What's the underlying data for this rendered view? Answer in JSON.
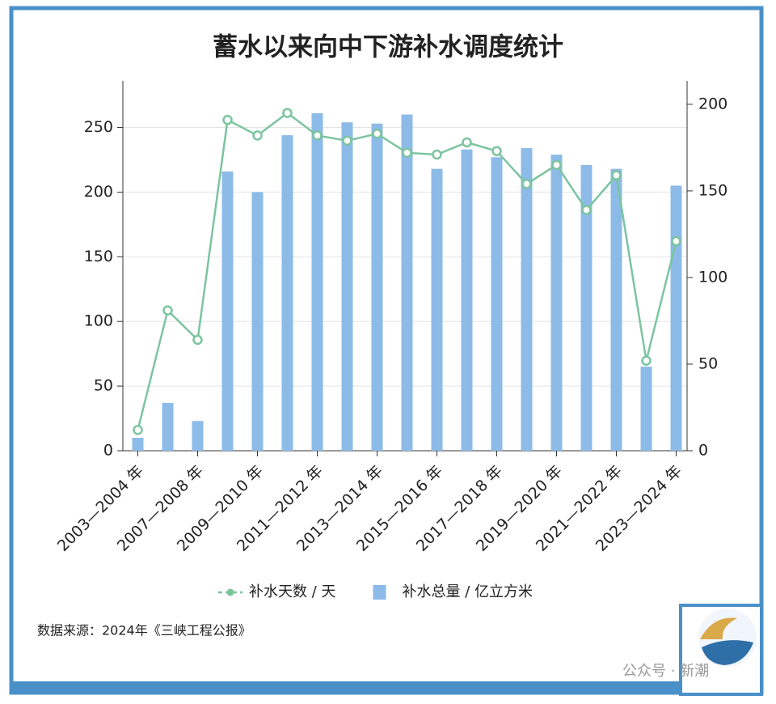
{
  "chart_data": {
    "type": "bar",
    "title": "蓄水以来向中下游补水调度统计",
    "categories": [
      "2003—2004 年",
      null,
      "2007—2008 年",
      null,
      "2009—2010 年",
      null,
      "2011—2012 年",
      null,
      "2013—2014 年",
      null,
      "2015—2016 年",
      null,
      "2017—2018 年",
      null,
      "2019—2020 年",
      null,
      "2021—2022 年",
      null,
      "2023—2024 年"
    ],
    "series": [
      {
        "name": "补水天数 / 天",
        "type": "line",
        "axis": "y2",
        "color": "#7cc4a0",
        "values": [
          12,
          81,
          64,
          191,
          182,
          195,
          182,
          179,
          183,
          172,
          171,
          178,
          173,
          154,
          165,
          139,
          159,
          52,
          121
        ]
      },
      {
        "name": "补水总量 / 亿立方米",
        "type": "bar",
        "color": "#8cbbe8",
        "values": [
          10,
          37,
          23,
          216,
          200,
          244,
          261,
          254,
          253,
          260,
          218,
          233,
          227,
          234,
          229,
          221,
          218,
          65,
          205
        ]
      }
    ],
    "ylim": [
      0,
      286
    ],
    "yticks": [
      0,
      50,
      100,
      150,
      200,
      250
    ],
    "y2lim": [
      0,
      213.5
    ],
    "y2ticks": [
      0,
      50,
      100,
      150,
      200
    ],
    "grid": true,
    "source": "数据来源：2024年《三峡工程公报》",
    "watermark": "公众号 · 新潮"
  }
}
